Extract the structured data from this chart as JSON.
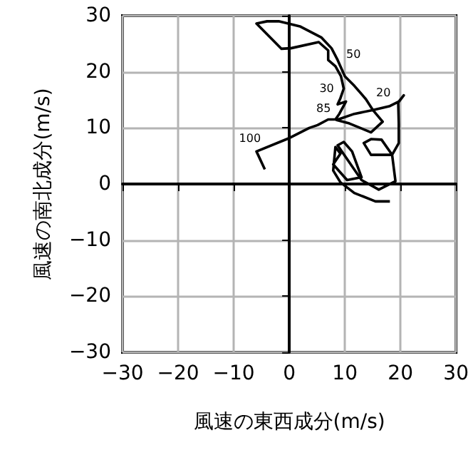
{
  "chart_data": {
    "type": "line",
    "xlabel": "風速の東西成分(m/s)",
    "ylabel": "風速の南北成分(m/s)",
    "xlim": [
      -30,
      30
    ],
    "ylim": [
      -30,
      30
    ],
    "xticks": [
      -30,
      -20,
      -10,
      0,
      10,
      20,
      30
    ],
    "yticks": [
      -30,
      -20,
      -10,
      0,
      10,
      20,
      30
    ],
    "grid": true,
    "marker": "none",
    "x": [
      -4.4,
      -5.9,
      -0.2,
      3.6,
      5.1,
      7.0,
      8.3,
      9.0,
      10.2,
      8.7,
      9.2,
      9.8,
      9.3,
      8.3,
      7.0,
      7.0,
      5.3,
      0.3,
      -1.4,
      -5.9,
      -4.0,
      -1.9,
      1.9,
      5.8,
      7.6,
      8.7,
      10.0,
      11.7,
      13.8,
      15.1,
      16.8,
      14.7,
      10.8,
      8.5,
      11.7,
      15.1,
      18.1,
      19.7,
      20.6,
      19.6,
      19.7,
      19.7,
      18.5,
      14.7,
      13.4,
      14.7,
      16.6,
      18.5,
      19.1,
      16.1,
      13.0,
      8.7,
      9.8,
      11.3,
      13.0,
      10.4,
      7.9,
      9.2,
      8.3,
      7.9,
      9.2,
      11.7,
      15.5,
      18.1
    ],
    "series": [
      {
        "color": "#000000",
        "values": [
          2.6,
          5.8,
          8.1,
          10.0,
          10.5,
          11.5,
          11.5,
          12.5,
          14.7,
          14.2,
          15.3,
          17.0,
          19.2,
          21.0,
          22.1,
          23.8,
          25.3,
          24.2,
          24.1,
          28.6,
          29.0,
          29.0,
          28.1,
          26.1,
          24.2,
          22.1,
          19.2,
          17.5,
          15.1,
          13.1,
          11.1,
          9.2,
          10.8,
          11.4,
          12.5,
          13.2,
          13.9,
          14.7,
          15.8,
          14.5,
          10.7,
          7.3,
          5.2,
          5.2,
          7.3,
          8.0,
          7.9,
          5.2,
          0.5,
          -1.0,
          0.7,
          6.9,
          7.5,
          5.8,
          1.2,
          0.7,
          3.5,
          5.4,
          6.6,
          2.4,
          0.3,
          -1.6,
          -3.1,
          -3.1
        ]
      }
    ],
    "annotations": [
      {
        "text": "100",
        "x": -5.9,
        "y": 5.8
      },
      {
        "text": "85",
        "x": 9.0,
        "y": 12.5
      },
      {
        "text": "50",
        "x": 8.7,
        "y": 22.1
      },
      {
        "text": "30",
        "x": 9.8,
        "y": 17.0
      },
      {
        "text": "20",
        "x": 18.1,
        "y": 13.9
      }
    ]
  }
}
